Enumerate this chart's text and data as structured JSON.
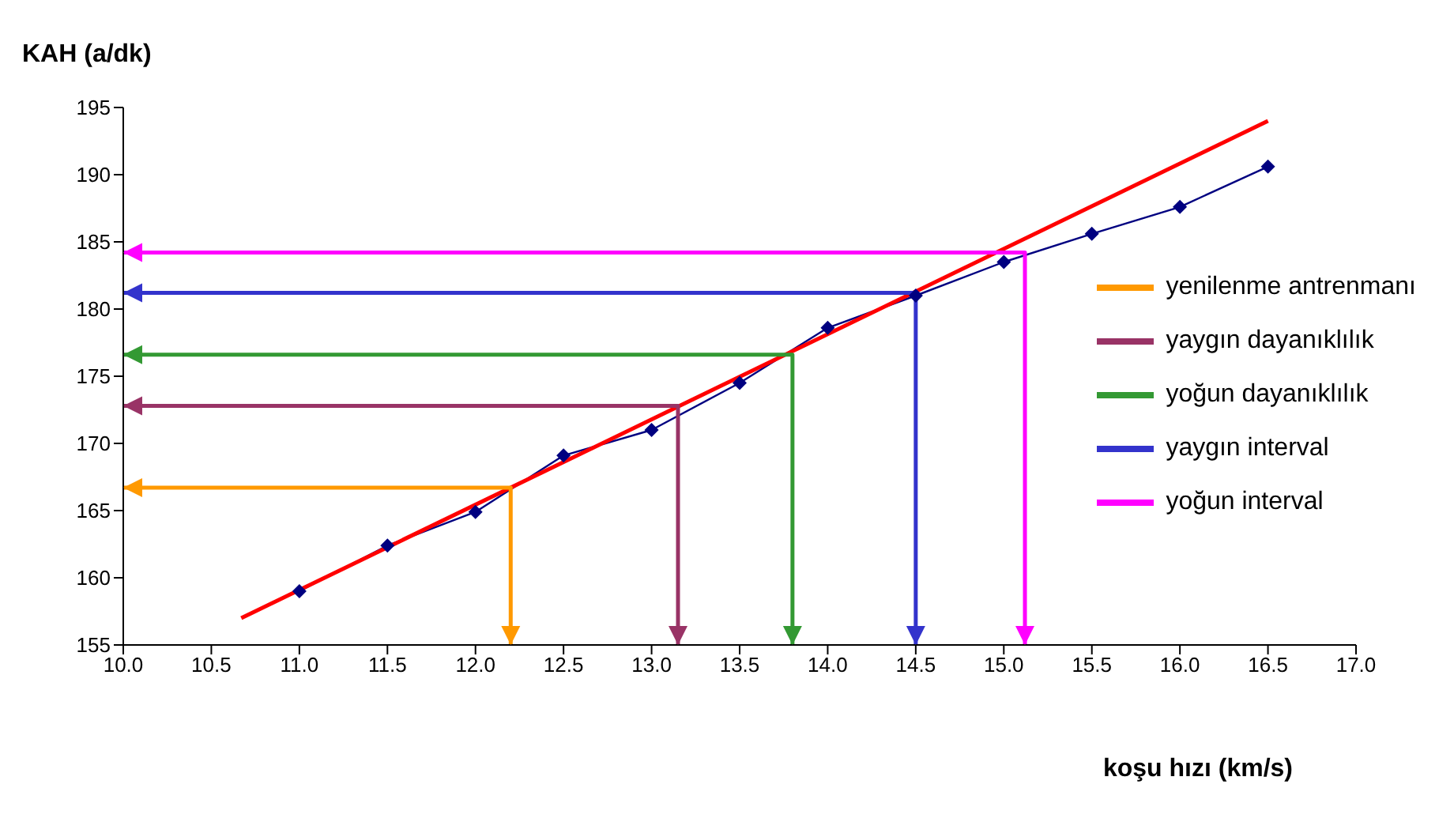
{
  "chart_data": {
    "type": "line",
    "ylabel": "KAH (a/dk)",
    "xlabel": "koşu hızı (km/s)",
    "xlim": [
      10,
      17
    ],
    "xticks": [
      {
        "value": 10,
        "label": "10.0"
      },
      {
        "value": 10.5,
        "label": "10.5"
      },
      {
        "value": 11,
        "label": "11.0"
      },
      {
        "value": 11.5,
        "label": "11.5"
      },
      {
        "value": 12,
        "label": "12.0"
      },
      {
        "value": 12.5,
        "label": "12.5"
      },
      {
        "value": 13,
        "label": "13.0"
      },
      {
        "value": 13.5,
        "label": "13.5"
      },
      {
        "value": 14,
        "label": "14.0"
      },
      {
        "value": 14.5,
        "label": "14.5"
      },
      {
        "value": 15,
        "label": "15.0"
      },
      {
        "value": 15.5,
        "label": "15.5"
      },
      {
        "value": 16,
        "label": "16.0"
      },
      {
        "value": 16.5,
        "label": "16.5"
      },
      {
        "value": 17,
        "label": "17.0"
      }
    ],
    "ylim": [
      155,
      195
    ],
    "yticks": [
      155,
      160,
      165,
      170,
      175,
      180,
      185,
      190,
      195
    ],
    "grid": false,
    "legend": "right",
    "series": [
      {
        "color": "#000080",
        "marker": "diamond",
        "x": [
          11,
          11.5,
          12,
          12.5,
          13,
          13.5,
          14,
          14.5,
          15,
          15.5,
          16,
          16.5
        ],
        "values": [
          159,
          162.4,
          164.9,
          169.1,
          171,
          174.5,
          178.6,
          181,
          183.5,
          185.6,
          187.6,
          190.6
        ]
      },
      {
        "color": "#ff0000",
        "x": [
          10.67,
          16.5
        ],
        "values": [
          157,
          194
        ]
      },
      {
        "name": "yenilenme antrenmanı",
        "color": "#ff9900",
        "x": [
          10,
          12.2,
          12.2
        ],
        "values": [
          166.7,
          166.7,
          155
        ]
      },
      {
        "name": "yaygın dayanıklılık",
        "color": "#993366",
        "x": [
          10,
          13.15,
          13.15
        ],
        "values": [
          172.8,
          172.8,
          155
        ]
      },
      {
        "name": "yoğun dayanıklılık",
        "color": "#339933",
        "x": [
          10,
          13.8,
          13.8
        ],
        "values": [
          176.6,
          176.6,
          155
        ]
      },
      {
        "name": "yaygın interval",
        "color": "#3333cc",
        "x": [
          10,
          14.5,
          14.5
        ],
        "values": [
          181.2,
          181.2,
          155
        ]
      },
      {
        "name": "yoğun interval",
        "color": "#ff00ff",
        "x": [
          10,
          15.12,
          15.12
        ],
        "values": [
          184.2,
          184.2,
          155
        ]
      }
    ]
  }
}
